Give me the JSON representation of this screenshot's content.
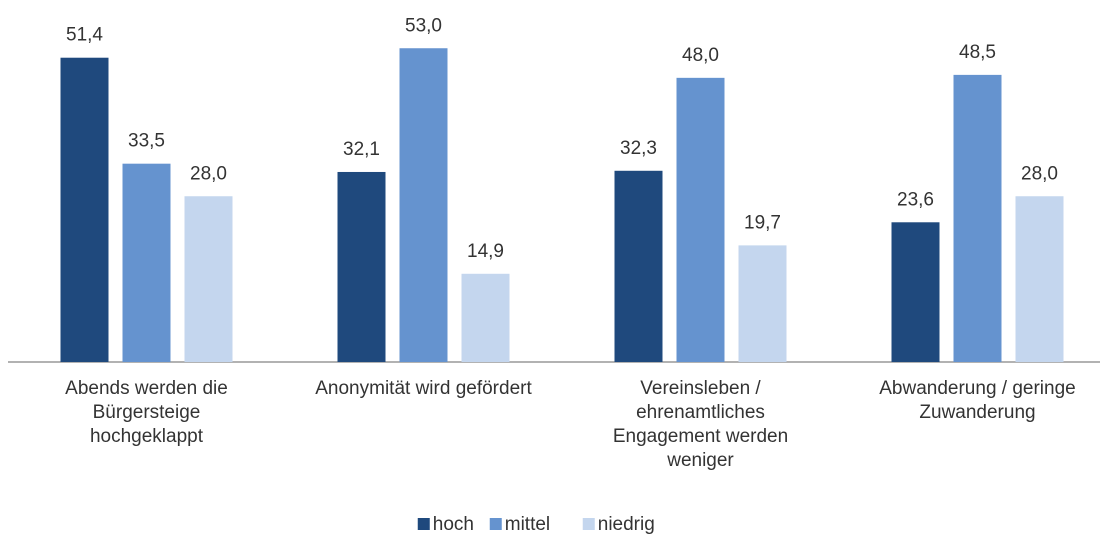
{
  "chart_data": {
    "type": "bar",
    "categories": [
      "Abends werden die\nBürgersteige\nhochgeklappt",
      "Anonymität wird gefördert",
      "Vereinsleben /\nehrenamtliches\nEngagement werden\nweniger",
      "Abwanderung / geringe\nZuwanderung"
    ],
    "series": [
      {
        "name": "hoch",
        "color": "#1f497d",
        "values": [
          51.4,
          32.1,
          32.3,
          23.6
        ],
        "value_labels": [
          "51,4",
          "32,1",
          "32,3",
          "23,6"
        ]
      },
      {
        "name": "mittel",
        "color": "#6593cf",
        "values": [
          33.5,
          53.0,
          48.0,
          48.5
        ],
        "value_labels": [
          "33,5",
          "53,0",
          "48,0",
          "48,5"
        ]
      },
      {
        "name": "niedrig",
        "color": "#c4d6ee",
        "values": [
          28.0,
          14.9,
          19.7,
          28.0
        ],
        "value_labels": [
          "28,0",
          "14,9",
          "19,7",
          "28,0"
        ]
      }
    ],
    "legend": "bottom"
  }
}
